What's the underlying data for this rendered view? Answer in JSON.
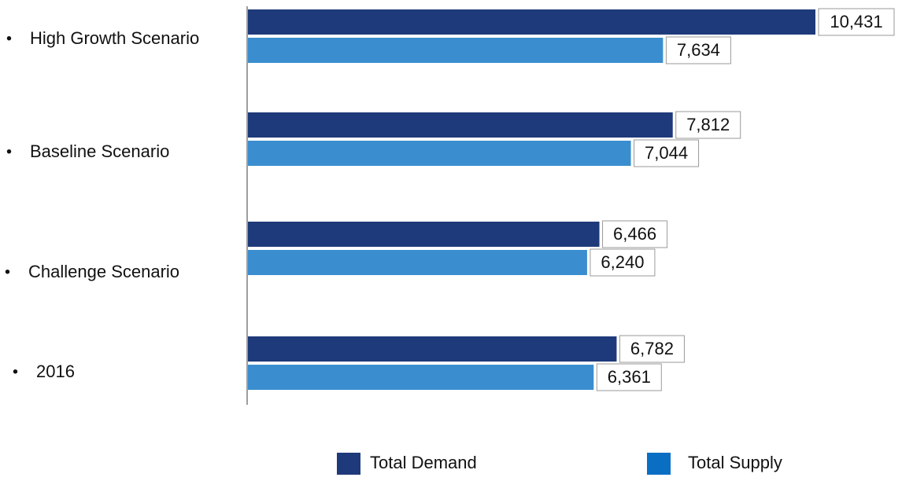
{
  "chart_data": {
    "type": "bar",
    "orientation": "horizontal",
    "categories": [
      "High Growth Scenario",
      "Baseline Scenario",
      "Challenge Scenario",
      "2016"
    ],
    "series": [
      {
        "name": "Total Demand",
        "color": "#1f3a7a",
        "values": [
          10431,
          7812,
          6466,
          6782
        ]
      },
      {
        "name": "Total Supply",
        "color": "#3a8ecf",
        "values": [
          7634,
          7044,
          6240,
          6361
        ]
      }
    ],
    "data_labels": {
      "Total Demand": [
        "10,431",
        "7,812",
        "6,466",
        "6,782"
      ],
      "Total Supply": [
        "7,634",
        "7,044",
        "6,240",
        "6,361"
      ]
    },
    "legend": {
      "placement": "bottom",
      "entries": [
        {
          "label": "Total Demand",
          "color": "#1f3a7a"
        },
        {
          "label": "Total Supply",
          "color": "#0a6fc2"
        }
      ]
    },
    "bullet": "•",
    "xlim": [
      0,
      10431
    ],
    "grid": false,
    "title": "",
    "xlabel": "",
    "ylabel": ""
  }
}
